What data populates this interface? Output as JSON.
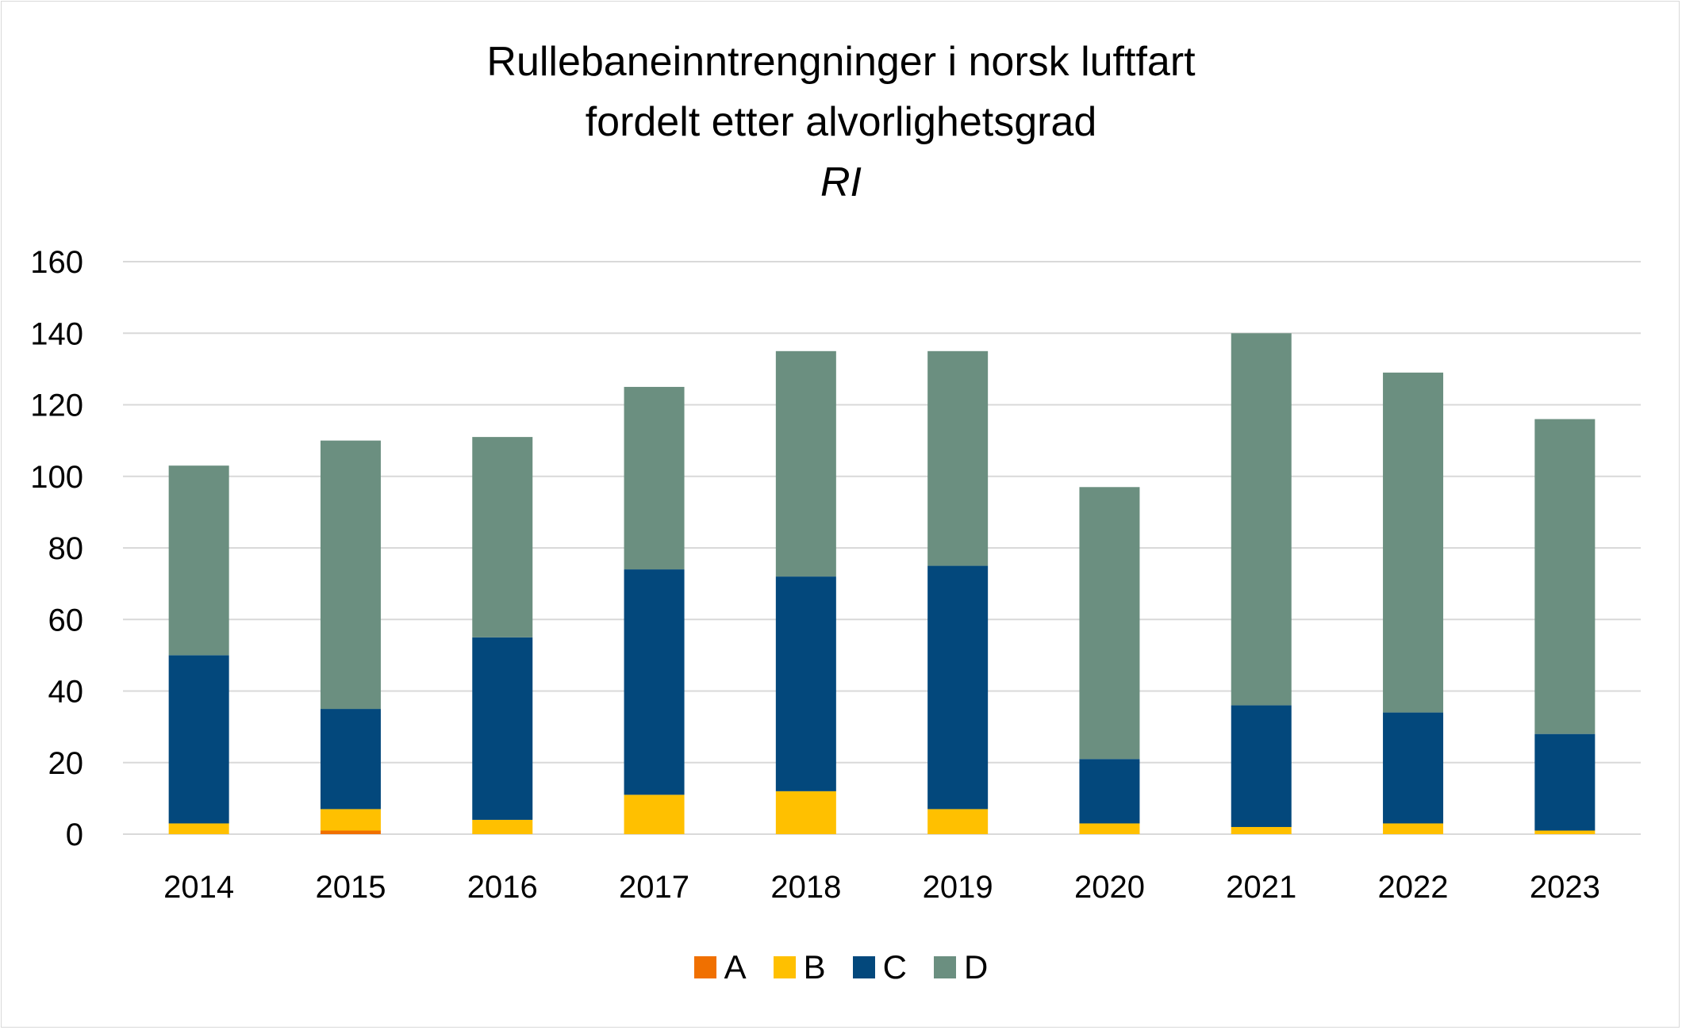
{
  "chart_data": {
    "type": "bar",
    "stacked": true,
    "title": [
      "Rullebaneinntrengninger i norsk luftfart",
      "fordelt etter alvorlighetsgrad"
    ],
    "subtitle": "RI",
    "xlabel": "",
    "ylabel": "",
    "ylim": [
      0,
      160
    ],
    "yticks": [
      0,
      20,
      40,
      60,
      80,
      100,
      120,
      140,
      160
    ],
    "grid": true,
    "legend_position": "bottom",
    "categories": [
      "2014",
      "2015",
      "2016",
      "2017",
      "2018",
      "2019",
      "2020",
      "2021",
      "2022",
      "2023"
    ],
    "series": [
      {
        "name": "A",
        "color": "#f07000",
        "values": [
          0,
          1,
          0,
          0,
          0,
          0,
          0,
          0,
          0,
          0
        ]
      },
      {
        "name": "B",
        "color": "#ffc000",
        "values": [
          3,
          6,
          4,
          11,
          12,
          7,
          3,
          2,
          3,
          1
        ]
      },
      {
        "name": "C",
        "color": "#03487c",
        "values": [
          47,
          28,
          51,
          63,
          60,
          68,
          18,
          34,
          31,
          27
        ]
      },
      {
        "name": "D",
        "color": "#6b8f80",
        "values": [
          53,
          75,
          56,
          51,
          63,
          60,
          76,
          104,
          95,
          88
        ]
      }
    ]
  }
}
